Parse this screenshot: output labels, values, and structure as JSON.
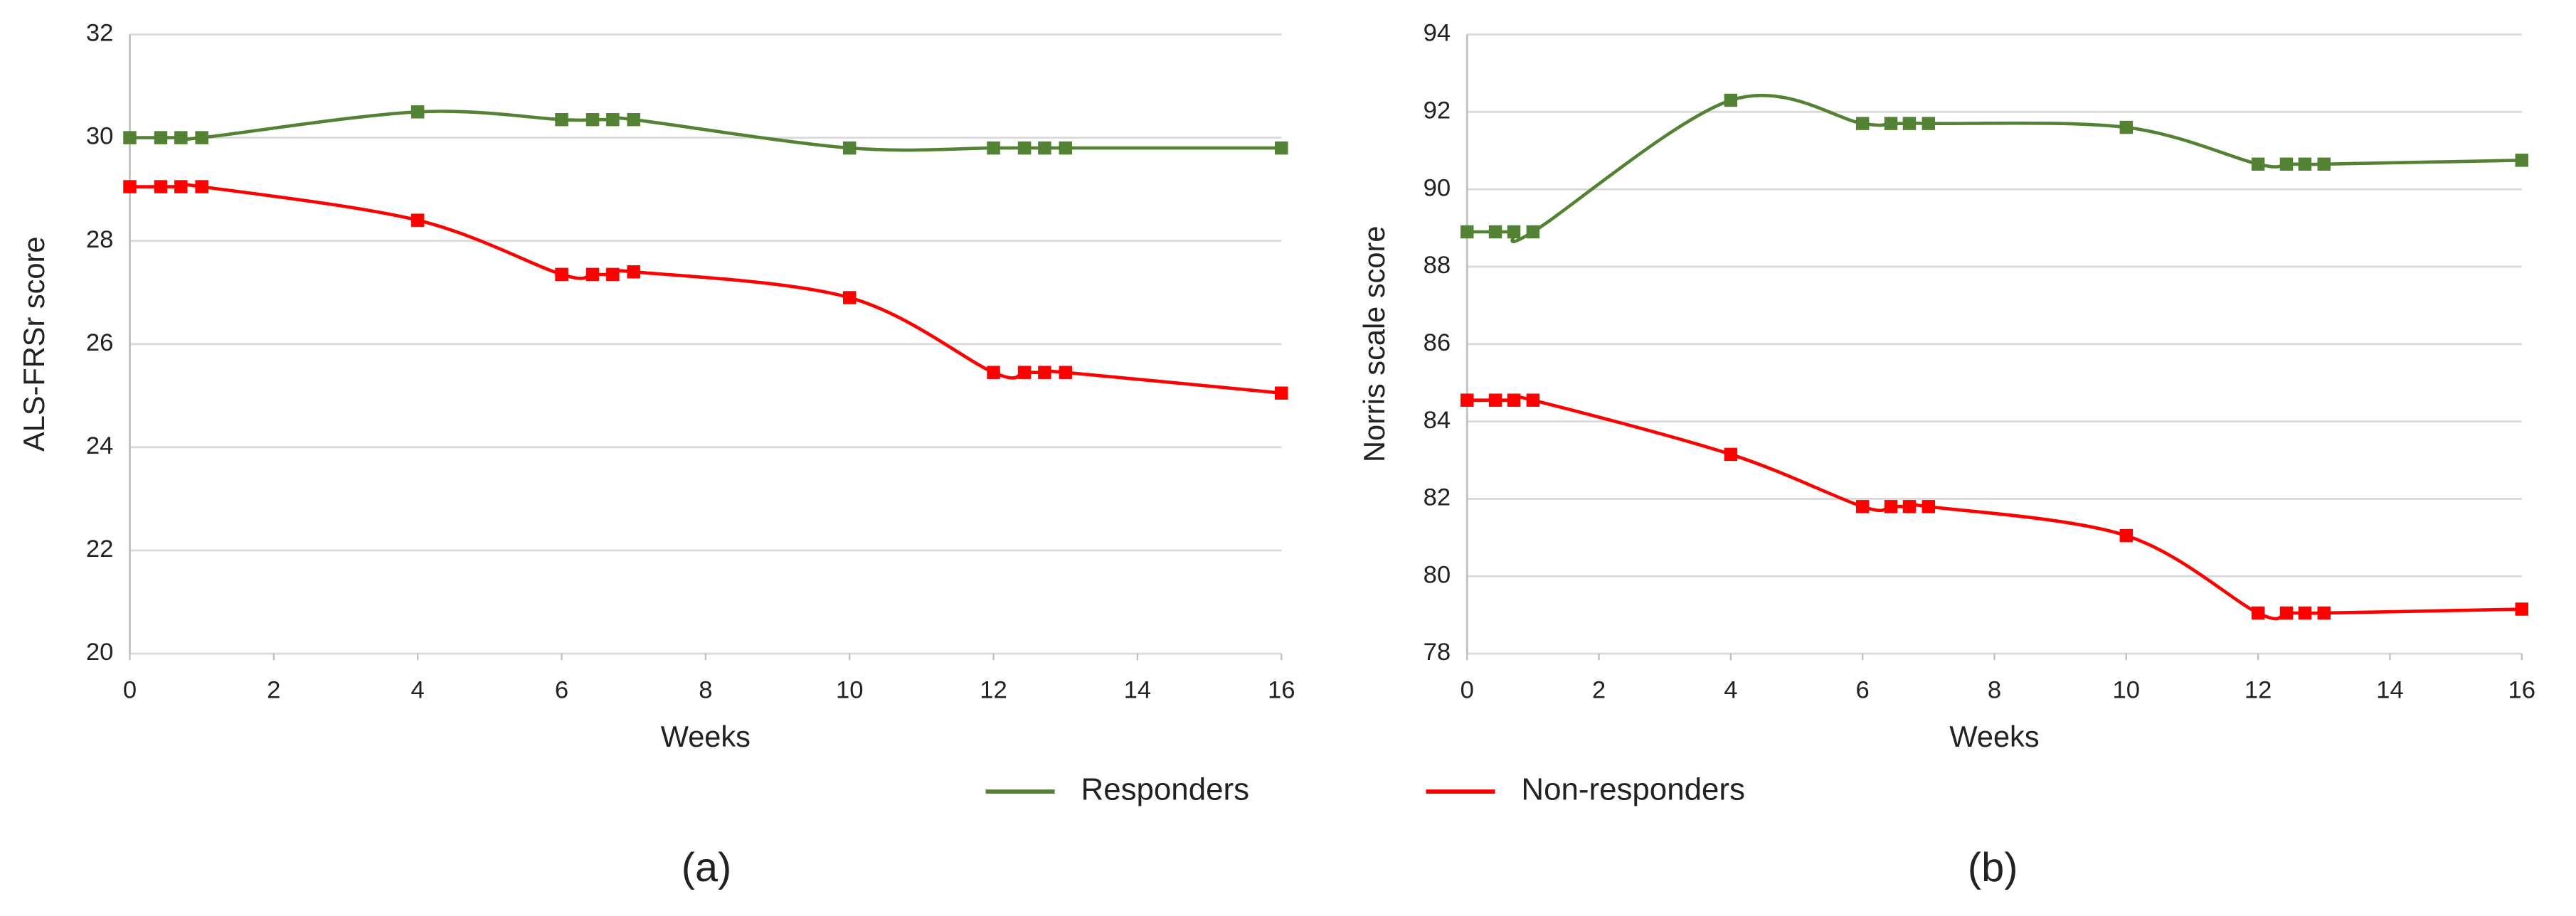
{
  "chart_data": [
    {
      "type": "line",
      "label": "(a)",
      "x_label": "Weeks",
      "y_label": "ALS-FRSr score",
      "x": [
        0,
        0.43,
        0.71,
        1,
        4,
        6,
        6.43,
        6.71,
        7,
        10,
        12,
        12.43,
        12.71,
        13,
        16
      ],
      "xlim": [
        0,
        16
      ],
      "xticks": [
        0,
        2,
        4,
        6,
        8,
        10,
        12,
        14,
        16
      ],
      "ylim": [
        20,
        32
      ],
      "yticks": [
        20,
        22,
        24,
        26,
        28,
        30,
        32
      ],
      "grid": true,
      "series": [
        {
          "name": "Responders",
          "color": "#548235",
          "values": [
            30,
            30,
            30,
            30,
            30.5,
            30.35,
            30.35,
            30.35,
            30.35,
            29.8,
            29.8,
            29.8,
            29.8,
            29.8,
            29.8
          ]
        },
        {
          "name": "Non-responders",
          "color": "#ff0000",
          "values": [
            29.05,
            29.05,
            29.05,
            29.05,
            28.4,
            27.35,
            27.35,
            27.35,
            27.4,
            26.9,
            25.45,
            25.45,
            25.45,
            25.45,
            25.05
          ]
        }
      ]
    },
    {
      "type": "line",
      "label": "(b)",
      "x_label": "Weeks",
      "y_label": "Norris scale score",
      "x": [
        0,
        0.43,
        0.71,
        1,
        4,
        6,
        6.43,
        6.71,
        7,
        10,
        12,
        12.43,
        12.71,
        13,
        16
      ],
      "xlim": [
        0,
        16
      ],
      "xticks": [
        0,
        2,
        4,
        6,
        8,
        10,
        12,
        14,
        16
      ],
      "ylim": [
        78,
        94
      ],
      "yticks": [
        78,
        80,
        82,
        84,
        86,
        88,
        90,
        92,
        94
      ],
      "grid": true,
      "series": [
        {
          "name": "Responders",
          "color": "#548235",
          "values": [
            88.9,
            88.9,
            88.9,
            88.9,
            92.3,
            91.7,
            91.7,
            91.7,
            91.7,
            91.6,
            90.65,
            90.65,
            90.65,
            90.65,
            90.75
          ]
        },
        {
          "name": "Non-responders",
          "color": "#ff0000",
          "values": [
            84.55,
            84.55,
            84.55,
            84.55,
            83.15,
            81.8,
            81.8,
            81.8,
            81.8,
            81.05,
            79.05,
            79.05,
            79.05,
            79.05,
            79.15
          ]
        }
      ]
    }
  ]
}
